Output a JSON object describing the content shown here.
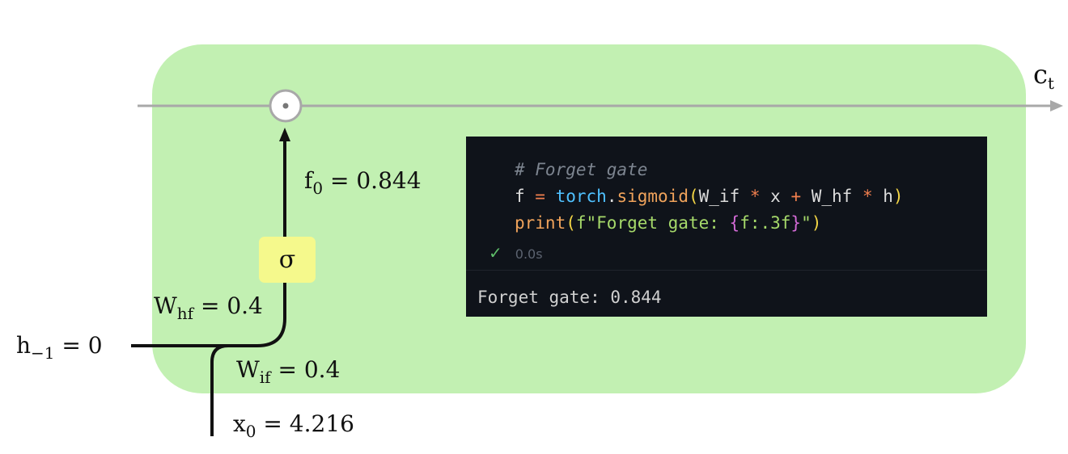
{
  "diagram": {
    "colors": {
      "cell_bg": "#c2f0b2",
      "gate_bg": "#f5f98c",
      "cell_line": "#a8a8a8",
      "wire": "#111111"
    },
    "cell_state_label": {
      "base": "c",
      "sub": "t"
    },
    "multiply_icon": "circle-dot-icon",
    "gate_symbol": "σ",
    "f_label": {
      "base": "f",
      "sub": "0",
      "rest": " = 0.844"
    },
    "whf_label": {
      "base": "W",
      "sub": "hf",
      "rest": " = 0.4"
    },
    "wif_label": {
      "base": "W",
      "sub": "if",
      "rest": " = 0.4"
    },
    "h_label": {
      "base": "h",
      "sub": "−1",
      "rest": " = 0"
    },
    "x_label": {
      "base": "x",
      "sub": "0",
      "rest": " = 4.216"
    }
  },
  "code_cell": {
    "comment": "# Forget gate",
    "line2": {
      "a": "f ",
      "eq": "=",
      "mod": " torch",
      "dot": ".",
      "fn": "sigmoid",
      "lp": "(",
      "args1": "W_if ",
      "op1": "*",
      "args2": " x ",
      "op2": "+",
      "args3": " W_hf ",
      "op3": "*",
      "args4": " h",
      "rp": ")"
    },
    "line3": {
      "fn": "print",
      "lp": "(",
      "str1": "f\"Forget gate: ",
      "lb": "{",
      "fmt": "f:.3f",
      "rb": "}",
      "str2": "\"",
      "rp": ")"
    },
    "status_icon": "check-icon",
    "status_time": "0.0s",
    "output": "Forget gate: 0.844"
  }
}
